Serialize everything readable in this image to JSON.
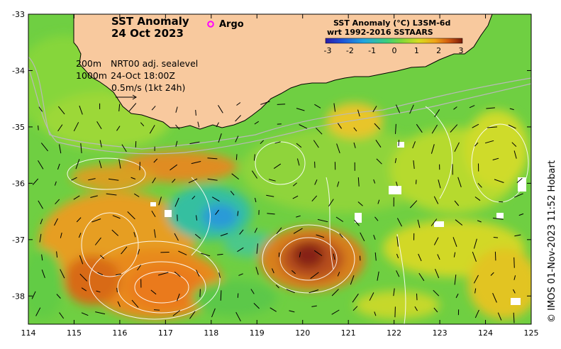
{
  "map": {
    "title_line1": "SST Anomaly",
    "title_line2": "24 Oct 2023",
    "legend_argo": "Argo",
    "contour_label_200": "200m",
    "contour_label_1000": "1000m",
    "nrt_label": "NRT00 adj. sealevel",
    "datetime_label": "24-Oct 18:00Z",
    "scale_label": "0.5m/s (1kt 24h)",
    "colorbar_title1": "SST Anomaly (°C) L3SM-6d",
    "colorbar_title2": "wrt 1992-2016 SSTAARS",
    "colorbar_ticks": [
      "-3",
      "-2",
      "-1",
      "0",
      "1",
      "2",
      "3"
    ],
    "colorbar_colors": [
      "#2a1ca8",
      "#1f52d8",
      "#22a6e0",
      "#3ccf7a",
      "#7cd83a",
      "#d6dc20",
      "#f0a318",
      "#d05a10",
      "#7a1a08"
    ],
    "credit": "© IMOS 01-Nov-2023 11:52 Hobart",
    "land_color": "#f8c99e",
    "argo_color": "#ff00ff"
  },
  "axes": {
    "x_ticks": [
      "114",
      "115",
      "116",
      "117",
      "118",
      "119",
      "120",
      "121",
      "122",
      "123",
      "124",
      "125"
    ],
    "y_ticks": [
      "-33",
      "-34",
      "-35",
      "-36",
      "-37",
      "-38"
    ],
    "lon_range": [
      114,
      125
    ],
    "lat_range": [
      -33,
      -38.5
    ]
  }
}
